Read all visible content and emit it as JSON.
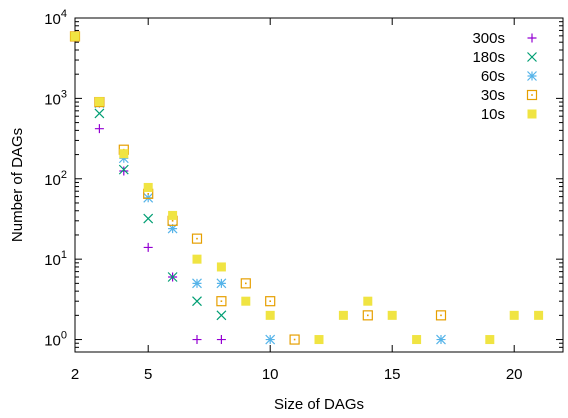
{
  "chart_data": {
    "type": "scatter",
    "title": "",
    "xlabel": "Size of DAGs",
    "ylabel": "Number of DAGs",
    "xlim": [
      2,
      22
    ],
    "ylim": [
      0.7,
      10000
    ],
    "y_scale": "log",
    "grid": false,
    "legend_position": "top-right",
    "x_ticks": [
      2,
      5,
      10,
      15,
      20
    ],
    "x_tick_labels": [
      "2",
      "5",
      "10",
      "15",
      "20"
    ],
    "y_ticks": [
      1,
      10,
      100,
      1000,
      10000
    ],
    "y_tick_labels": [
      {
        "base": "10",
        "exp": "0"
      },
      {
        "base": "10",
        "exp": "1"
      },
      {
        "base": "10",
        "exp": "2"
      },
      {
        "base": "10",
        "exp": "3"
      },
      {
        "base": "10",
        "exp": "4"
      }
    ],
    "series": [
      {
        "name": "300s",
        "marker": "plus",
        "color": "#9400d3",
        "points": [
          [
            2,
            5900
          ],
          [
            3,
            420
          ],
          [
            4,
            125
          ],
          [
            5,
            14
          ],
          [
            6,
            6
          ],
          [
            7,
            1
          ],
          [
            8,
            1
          ]
        ]
      },
      {
        "name": "180s",
        "marker": "cross",
        "color": "#009e73",
        "points": [
          [
            2,
            5900
          ],
          [
            3,
            650
          ],
          [
            4,
            130
          ],
          [
            5,
            32
          ],
          [
            6,
            6
          ],
          [
            7,
            3
          ],
          [
            8,
            2
          ]
        ]
      },
      {
        "name": "60s",
        "marker": "star",
        "color": "#56b4e9",
        "points": [
          [
            2,
            5900
          ],
          [
            3,
            870
          ],
          [
            4,
            180
          ],
          [
            5,
            58
          ],
          [
            6,
            24
          ],
          [
            7,
            5
          ],
          [
            8,
            5
          ],
          [
            10,
            1
          ],
          [
            17,
            1
          ]
        ]
      },
      {
        "name": "30s",
        "marker": "open-square",
        "color": "#e69f00",
        "points": [
          [
            2,
            5900
          ],
          [
            3,
            900
          ],
          [
            4,
            230
          ],
          [
            5,
            65
          ],
          [
            6,
            30
          ],
          [
            7,
            18
          ],
          [
            8,
            3
          ],
          [
            9,
            5
          ],
          [
            10,
            3
          ],
          [
            11,
            1
          ],
          [
            14,
            2
          ],
          [
            17,
            2
          ]
        ]
      },
      {
        "name": "10s",
        "marker": "filled-square",
        "color": "#f0e442",
        "points": [
          [
            2,
            5900
          ],
          [
            3,
            910
          ],
          [
            4,
            205
          ],
          [
            5,
            78
          ],
          [
            6,
            35
          ],
          [
            7,
            10
          ],
          [
            8,
            8
          ],
          [
            9,
            3
          ],
          [
            10,
            2
          ],
          [
            12,
            1
          ],
          [
            13,
            2
          ],
          [
            14,
            3
          ],
          [
            15,
            2
          ],
          [
            16,
            1
          ],
          [
            19,
            1
          ],
          [
            20,
            2
          ],
          [
            21,
            2
          ]
        ]
      }
    ]
  }
}
